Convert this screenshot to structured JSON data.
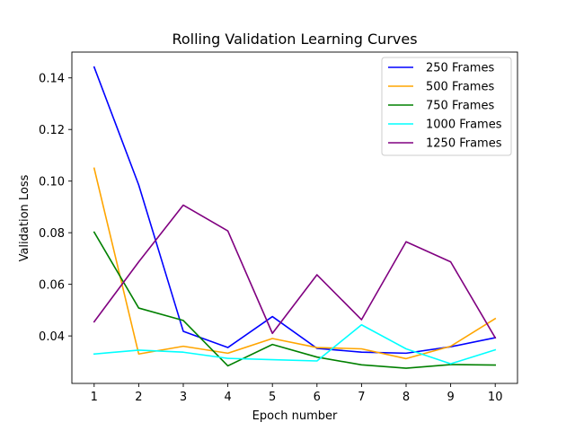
{
  "chart_data": {
    "type": "line",
    "title": "Rolling  Validation Learning Curves",
    "xlabel": "Epoch number",
    "ylabel": "Validation Loss",
    "x": [
      1,
      2,
      3,
      4,
      5,
      6,
      7,
      8,
      9,
      10
    ],
    "xlim": [
      0.5,
      10.5
    ],
    "ylim": [
      0.0216,
      0.15
    ],
    "xticks": [
      1,
      2,
      3,
      4,
      5,
      6,
      7,
      8,
      9,
      10
    ],
    "yticks": [
      0.04,
      0.06,
      0.08,
      0.1,
      0.12,
      0.14
    ],
    "ytick_labels": [
      "0.04",
      "0.06",
      "0.08",
      "0.10",
      "0.12",
      "0.14"
    ],
    "grid": false,
    "legend_position": "top-right",
    "series": [
      {
        "name": "250 Frames",
        "color": "#0000ff",
        "values": [
          0.1442,
          0.0985,
          0.0418,
          0.0355,
          0.0475,
          0.0352,
          0.0337,
          0.0333,
          0.0358,
          0.0393
        ]
      },
      {
        "name": "500 Frames",
        "color": "#ffa500",
        "values": [
          0.105,
          0.033,
          0.036,
          0.0333,
          0.039,
          0.0355,
          0.035,
          0.0312,
          0.036,
          0.0467
        ]
      },
      {
        "name": "750 Frames",
        "color": "#008000",
        "values": [
          0.0802,
          0.0508,
          0.046,
          0.0284,
          0.0367,
          0.0318,
          0.0288,
          0.0275,
          0.0289,
          0.0287
        ]
      },
      {
        "name": "1000 Frames",
        "color": "#00ffff",
        "values": [
          0.033,
          0.0345,
          0.0337,
          0.0313,
          0.0308,
          0.0303,
          0.0443,
          0.035,
          0.0292,
          0.0346
        ]
      },
      {
        "name": "1250 Frames",
        "color": "#800080",
        "values": [
          0.0455,
          0.0687,
          0.0907,
          0.0807,
          0.041,
          0.0637,
          0.0463,
          0.0765,
          0.0687,
          0.0393
        ]
      }
    ]
  }
}
